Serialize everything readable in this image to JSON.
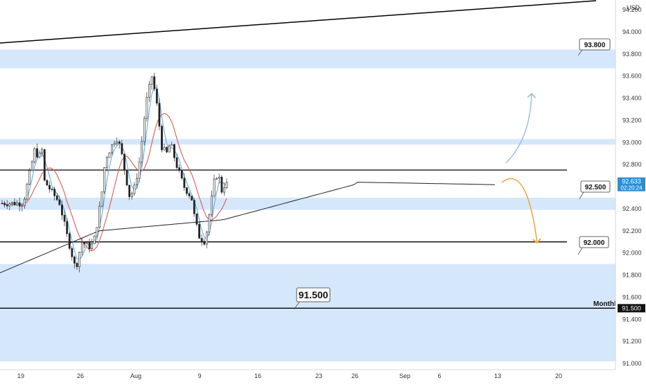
{
  "chart_data": {
    "type": "candlestick",
    "currency": "USD",
    "y_ticks": [
      "94.200",
      "94.000",
      "93.800",
      "93.600",
      "93.400",
      "93.200",
      "93.000",
      "92.800",
      "92.600",
      "92.400",
      "92.200",
      "92.000",
      "91.800",
      "91.600",
      "91.400",
      "91.200",
      "91.000"
    ],
    "y_range": [
      90.95,
      94.3
    ],
    "x_ticks": [
      "19",
      "26",
      "Aug",
      "9",
      "16",
      "23",
      "26",
      "Sep",
      "6",
      "13",
      "20"
    ],
    "current_price": "92.633",
    "countdown": "02:20:24",
    "zones": [
      {
        "from": 93.67,
        "to": 93.84
      },
      {
        "from": 92.98,
        "to": 93.03
      },
      {
        "from": 92.39,
        "to": 92.5
      },
      {
        "from": 91.02,
        "to": 91.9
      }
    ],
    "levels": [
      92.75,
      92.1,
      91.5
    ],
    "monthly_label": "Monthly",
    "monthly_level": "91.500",
    "callouts": [
      "93.800",
      "92.500",
      "92.000",
      "91.500"
    ],
    "ohlc_anchors": [
      [
        91.5,
        92.45
      ],
      [
        92.9,
        92.95
      ],
      [
        93.3,
        92.85
      ],
      [
        93.7,
        92.95
      ],
      [
        94.0,
        92.65
      ],
      [
        95.8,
        92.45
      ],
      [
        96.7,
        92.15
      ],
      [
        97.7,
        91.85
      ],
      [
        98.4,
        92.1
      ],
      [
        99.5,
        92.05
      ],
      [
        100.0,
        92.15
      ],
      [
        100.8,
        92.55
      ],
      [
        101.2,
        92.85
      ],
      [
        102.5,
        93.05
      ],
      [
        103.0,
        92.95
      ],
      [
        103.6,
        92.7
      ],
      [
        104.1,
        92.5
      ],
      [
        104.7,
        92.6
      ],
      [
        105.3,
        92.85
      ],
      [
        106.0,
        93.35
      ],
      [
        106.7,
        93.6
      ],
      [
        107.2,
        93.4
      ],
      [
        107.9,
        92.95
      ],
      [
        108.5,
        92.9
      ],
      [
        108.9,
        93.0
      ],
      [
        109.6,
        92.8
      ],
      [
        110.5,
        92.6
      ],
      [
        111.4,
        92.5
      ],
      [
        111.8,
        92.3
      ],
      [
        112.3,
        92.15
      ],
      [
        113.0,
        92.1
      ],
      [
        113.5,
        92.35
      ],
      [
        114.2,
        92.7
      ],
      [
        114.6,
        92.7
      ],
      [
        115.0,
        92.55
      ],
      [
        115.3,
        92.62
      ]
    ]
  }
}
